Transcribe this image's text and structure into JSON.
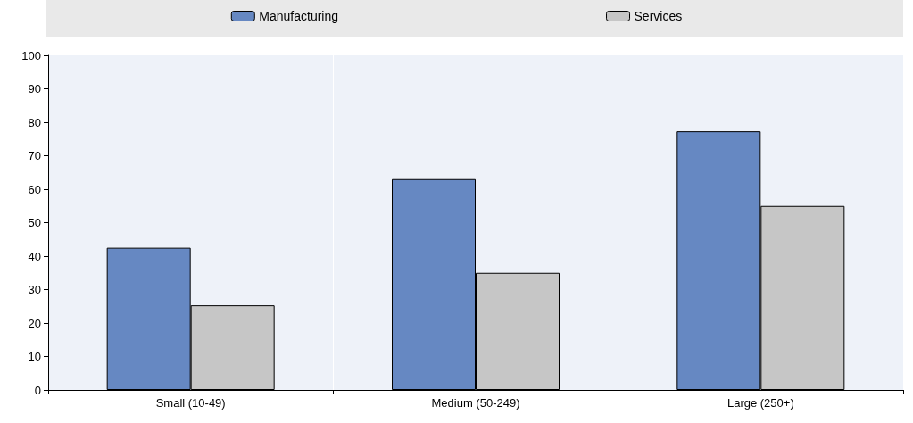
{
  "chart_data": {
    "type": "bar",
    "categories": [
      "Small (10-49)",
      "Medium (50-249)",
      "Large (250+)"
    ],
    "series": [
      {
        "name": "Manufacturing",
        "color": "#6688c2",
        "values": [
          42.5,
          63,
          77.3
        ]
      },
      {
        "name": "Services",
        "color": "#c6c6c6",
        "values": [
          25.3,
          35,
          55
        ]
      }
    ],
    "ylim": [
      0,
      100
    ],
    "yticks": [
      0,
      10,
      20,
      30,
      40,
      50,
      60,
      70,
      80,
      90,
      100
    ],
    "grid": "x",
    "legend": "top"
  }
}
